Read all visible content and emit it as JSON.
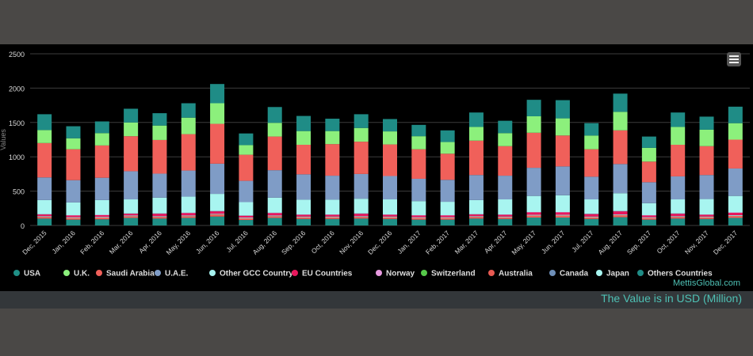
{
  "chart_data": {
    "type": "bar",
    "stacked": true,
    "title": "",
    "xlabel": "",
    "ylabel": "Values",
    "ylim": [
      0,
      2500
    ],
    "yticks": [
      0,
      500,
      1000,
      1500,
      2000,
      2500
    ],
    "grid": true,
    "legend_position": "bottom",
    "categories": [
      "Dec, 2015",
      "Jan, 2016",
      "Feb, 2016",
      "Mar, 2016",
      "Apr, 2016",
      "May, 2016",
      "Jun, 2016",
      "Jul, 2016",
      "Aug, 2016",
      "Sep, 2016",
      "Oct, 2016",
      "Nov, 2016",
      "Dec, 2016",
      "Jan, 2017",
      "Feb, 2017",
      "Mar, 2017",
      "Apr, 2017",
      "May, 2017",
      "Jun, 2017",
      "Jul, 2017",
      "Aug, 2017",
      "Sep, 2017",
      "Oct, 2017",
      "Nov, 2017",
      "Dec, 2017"
    ],
    "series": [
      {
        "name": "USA",
        "color": "#1f8f86",
        "values": [
          100,
          85,
          90,
          110,
          100,
          110,
          130,
          80,
          110,
          95,
          95,
          100,
          95,
          85,
          85,
          100,
          95,
          115,
          115,
          95,
          120,
          85,
          100,
          95,
          110
        ]
      },
      {
        "name": "U.K.",
        "color": "#8cf07c",
        "values": [
          0,
          0,
          0,
          0,
          0,
          0,
          0,
          0,
          0,
          0,
          0,
          0,
          0,
          0,
          0,
          0,
          0,
          0,
          0,
          0,
          0,
          0,
          0,
          0,
          0
        ]
      },
      {
        "name": "Saudi Arabia",
        "color": "#f0605a",
        "values": [
          25,
          25,
          25,
          25,
          25,
          25,
          30,
          25,
          25,
          25,
          25,
          25,
          25,
          25,
          25,
          25,
          25,
          30,
          30,
          25,
          30,
          25,
          25,
          25,
          30
        ]
      },
      {
        "name": "U.A.E.",
        "color": "#7f9cc6",
        "values": [
          0,
          0,
          0,
          0,
          0,
          0,
          0,
          0,
          0,
          0,
          0,
          0,
          0,
          0,
          0,
          0,
          0,
          0,
          0,
          0,
          0,
          0,
          0,
          0,
          0
        ]
      },
      {
        "name": "Other GCC Country",
        "color": "#a6f2ef",
        "values": [
          10,
          10,
          10,
          10,
          10,
          10,
          10,
          10,
          10,
          10,
          10,
          10,
          10,
          10,
          10,
          10,
          10,
          10,
          10,
          10,
          10,
          10,
          10,
          10,
          10
        ]
      },
      {
        "name": "EU Countries",
        "color": "#e8175d",
        "values": [
          25,
          25,
          25,
          25,
          35,
          35,
          35,
          25,
          35,
          25,
          25,
          35,
          25,
          25,
          25,
          25,
          25,
          35,
          35,
          35,
          45,
          25,
          35,
          25,
          35
        ]
      },
      {
        "name": "Norway",
        "color": "#e89ae0",
        "values": [
          5,
          5,
          5,
          5,
          5,
          5,
          5,
          5,
          5,
          5,
          5,
          5,
          5,
          5,
          5,
          5,
          5,
          5,
          5,
          5,
          5,
          5,
          5,
          5,
          5
        ]
      },
      {
        "name": "Switzerland",
        "color": "#56c94a",
        "values": [
          0,
          0,
          0,
          0,
          0,
          0,
          0,
          0,
          0,
          0,
          0,
          0,
          0,
          0,
          0,
          0,
          0,
          0,
          0,
          0,
          0,
          0,
          0,
          0,
          0
        ]
      },
      {
        "name": "Australia",
        "color": "#e85a52",
        "values": [
          0,
          0,
          0,
          0,
          0,
          0,
          0,
          0,
          0,
          0,
          0,
          0,
          0,
          0,
          0,
          0,
          0,
          0,
          0,
          0,
          0,
          0,
          0,
          0,
          0
        ]
      },
      {
        "name": "Canada",
        "color": "#6e8fb8",
        "values": [
          0,
          0,
          0,
          0,
          0,
          0,
          0,
          0,
          0,
          0,
          0,
          0,
          0,
          0,
          0,
          0,
          0,
          0,
          0,
          0,
          0,
          0,
          0,
          0,
          0
        ]
      },
      {
        "name": "Japan",
        "color": "#a8f5f0",
        "values": [
          205,
          185,
          215,
          205,
          230,
          235,
          250,
          195,
          220,
          215,
          215,
          215,
          220,
          205,
          195,
          205,
          220,
          235,
          245,
          210,
          260,
          175,
          205,
          225,
          240
        ]
      },
      {
        "name": "Others Countries",
        "color": "#1f8c86",
        "values": [
          0,
          0,
          0,
          0,
          0,
          0,
          0,
          0,
          0,
          0,
          0,
          0,
          0,
          0,
          0,
          0,
          0,
          0,
          0,
          0,
          0,
          0,
          0,
          0,
          0
        ]
      },
      {
        "name": "U.A.E. ",
        "color": "#7f9cc6",
        "values": [
          330,
          325,
          325,
          410,
          350,
          380,
          440,
          310,
          400,
          370,
          350,
          360,
          340,
          325,
          320,
          365,
          345,
          410,
          420,
          330,
          425,
          305,
          335,
          350,
          400
        ]
      },
      {
        "name": "Saudi Arabia ",
        "color": "#f0605a",
        "values": [
          500,
          450,
          470,
          510,
          490,
          530,
          580,
          380,
          490,
          430,
          460,
          470,
          460,
          430,
          380,
          500,
          430,
          510,
          450,
          400,
          490,
          300,
          460,
          420,
          420
        ]
      },
      {
        "name": "U.K. ",
        "color": "#8cf07c",
        "values": [
          190,
          160,
          180,
          200,
          210,
          240,
          300,
          140,
          200,
          200,
          190,
          200,
          190,
          190,
          170,
          200,
          190,
          240,
          250,
          200,
          270,
          200,
          260,
          240,
          240
        ]
      },
      {
        "name": "Others Countries ",
        "color": "#1f8c86",
        "values": [
          230,
          175,
          170,
          200,
          180,
          210,
          280,
          170,
          230,
          220,
          180,
          200,
          180,
          165,
          170,
          210,
          180,
          240,
          265,
          180,
          265,
          165,
          210,
          190,
          240
        ]
      }
    ],
    "legend": [
      "USA",
      "U.K.",
      "Saudi Arabia",
      "U.A.E.",
      "Other GCC Country",
      "EU Countries",
      "Norway",
      "Switzerland",
      "Australia",
      "Canada",
      "Japan",
      "Others Countries"
    ],
    "legend_colors": [
      "#1f8f86",
      "#8cf07c",
      "#f0605a",
      "#7f9cc6",
      "#a6f2ef",
      "#e8175d",
      "#e89ae0",
      "#56c94a",
      "#e85a52",
      "#6e8fb8",
      "#a8f5f0",
      "#1f8c86"
    ]
  },
  "source_credit": "MettisGlobal.com",
  "value_note": "The Value is in USD (Million)",
  "menu_icon": "hamburger-menu-icon"
}
